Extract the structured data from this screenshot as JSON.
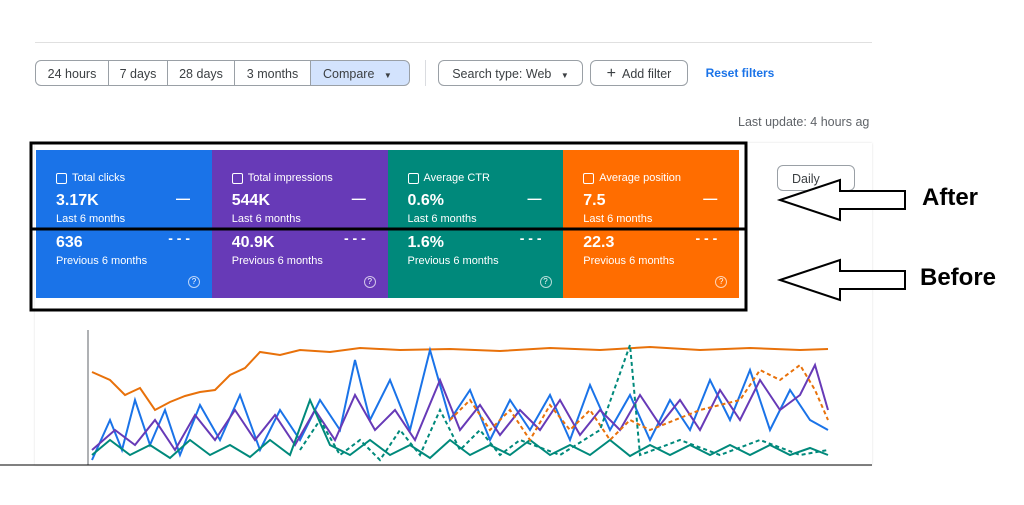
{
  "filters": {
    "ranges": [
      "24 hours",
      "7 days",
      "28 days",
      "3 months"
    ],
    "compare": "Compare",
    "search_type": "Search type: Web",
    "add_filter": "Add filter",
    "reset": "Reset filters"
  },
  "last_update": "Last update: 4 hours ag",
  "daily": "Daily",
  "metrics": [
    {
      "label": "Total clicks",
      "current": "3.17K",
      "current_period": "Last 6 months",
      "previous": "636",
      "previous_period": "Previous 6 months"
    },
    {
      "label": "Total impressions",
      "current": "544K",
      "current_period": "Last 6 months",
      "previous": "40.9K",
      "previous_period": "Previous 6 months"
    },
    {
      "label": "Average CTR",
      "current": "0.6%",
      "current_period": "Last 6 months",
      "previous": "1.6%",
      "previous_period": "Previous 6 months"
    },
    {
      "label": "Average position",
      "current": "7.5",
      "current_period": "Last 6 months",
      "previous": "22.3",
      "previous_period": "Previous 6 months"
    }
  ],
  "annotations": {
    "after": "After",
    "before": "Before"
  }
}
